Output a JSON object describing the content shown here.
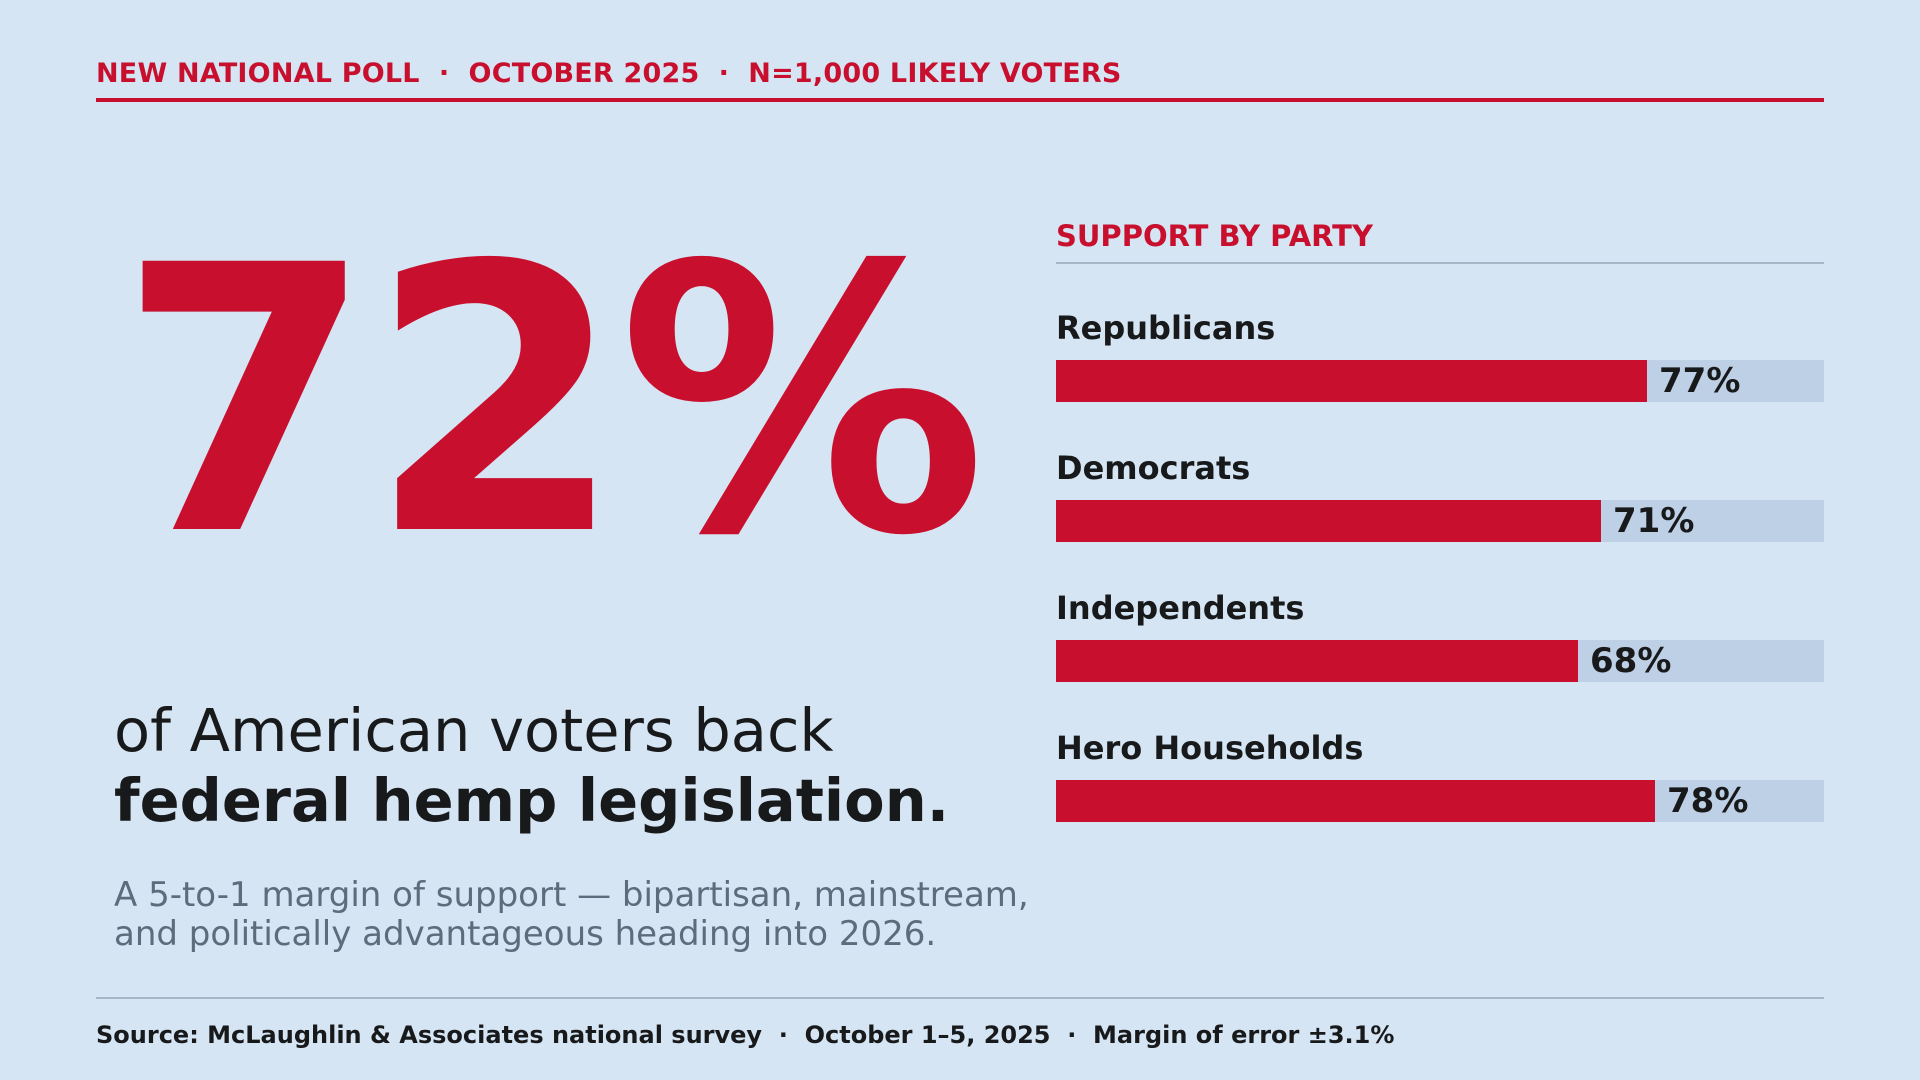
{
  "header": {
    "text": "NEW NATIONAL POLL  ·  OCTOBER 2025  ·  N=1,000 LIKELY VOTERS"
  },
  "headline": {
    "big_number": "72%",
    "line1": "of American voters back",
    "line2": "federal hemp legislation.",
    "subtext_line1": "A 5-to-1 margin of support — bipartisan, mainstream,",
    "subtext_line2": "and politically advantageous heading into 2026."
  },
  "footer": {
    "source": "Source: McLaughlin & Associates national survey  ·  October 1–5, 2025  ·  Margin of error ±3.1%"
  },
  "colors": {
    "background": "#d5e5f3",
    "accent": "#c8102e",
    "bar_track": "#bed0e5",
    "text": "#18191b",
    "muted": "#5d6c7c"
  },
  "chart_data": {
    "type": "bar",
    "orientation": "horizontal",
    "title": "SUPPORT BY PARTY",
    "categories": [
      "Republicans",
      "Democrats",
      "Independents",
      "Hero Households"
    ],
    "values": [
      77,
      71,
      68,
      78
    ],
    "value_labels": [
      "77%",
      "71%",
      "68%",
      "78%"
    ],
    "xlim": [
      0,
      100
    ],
    "unit": "%",
    "grid": false,
    "legend": "none"
  }
}
